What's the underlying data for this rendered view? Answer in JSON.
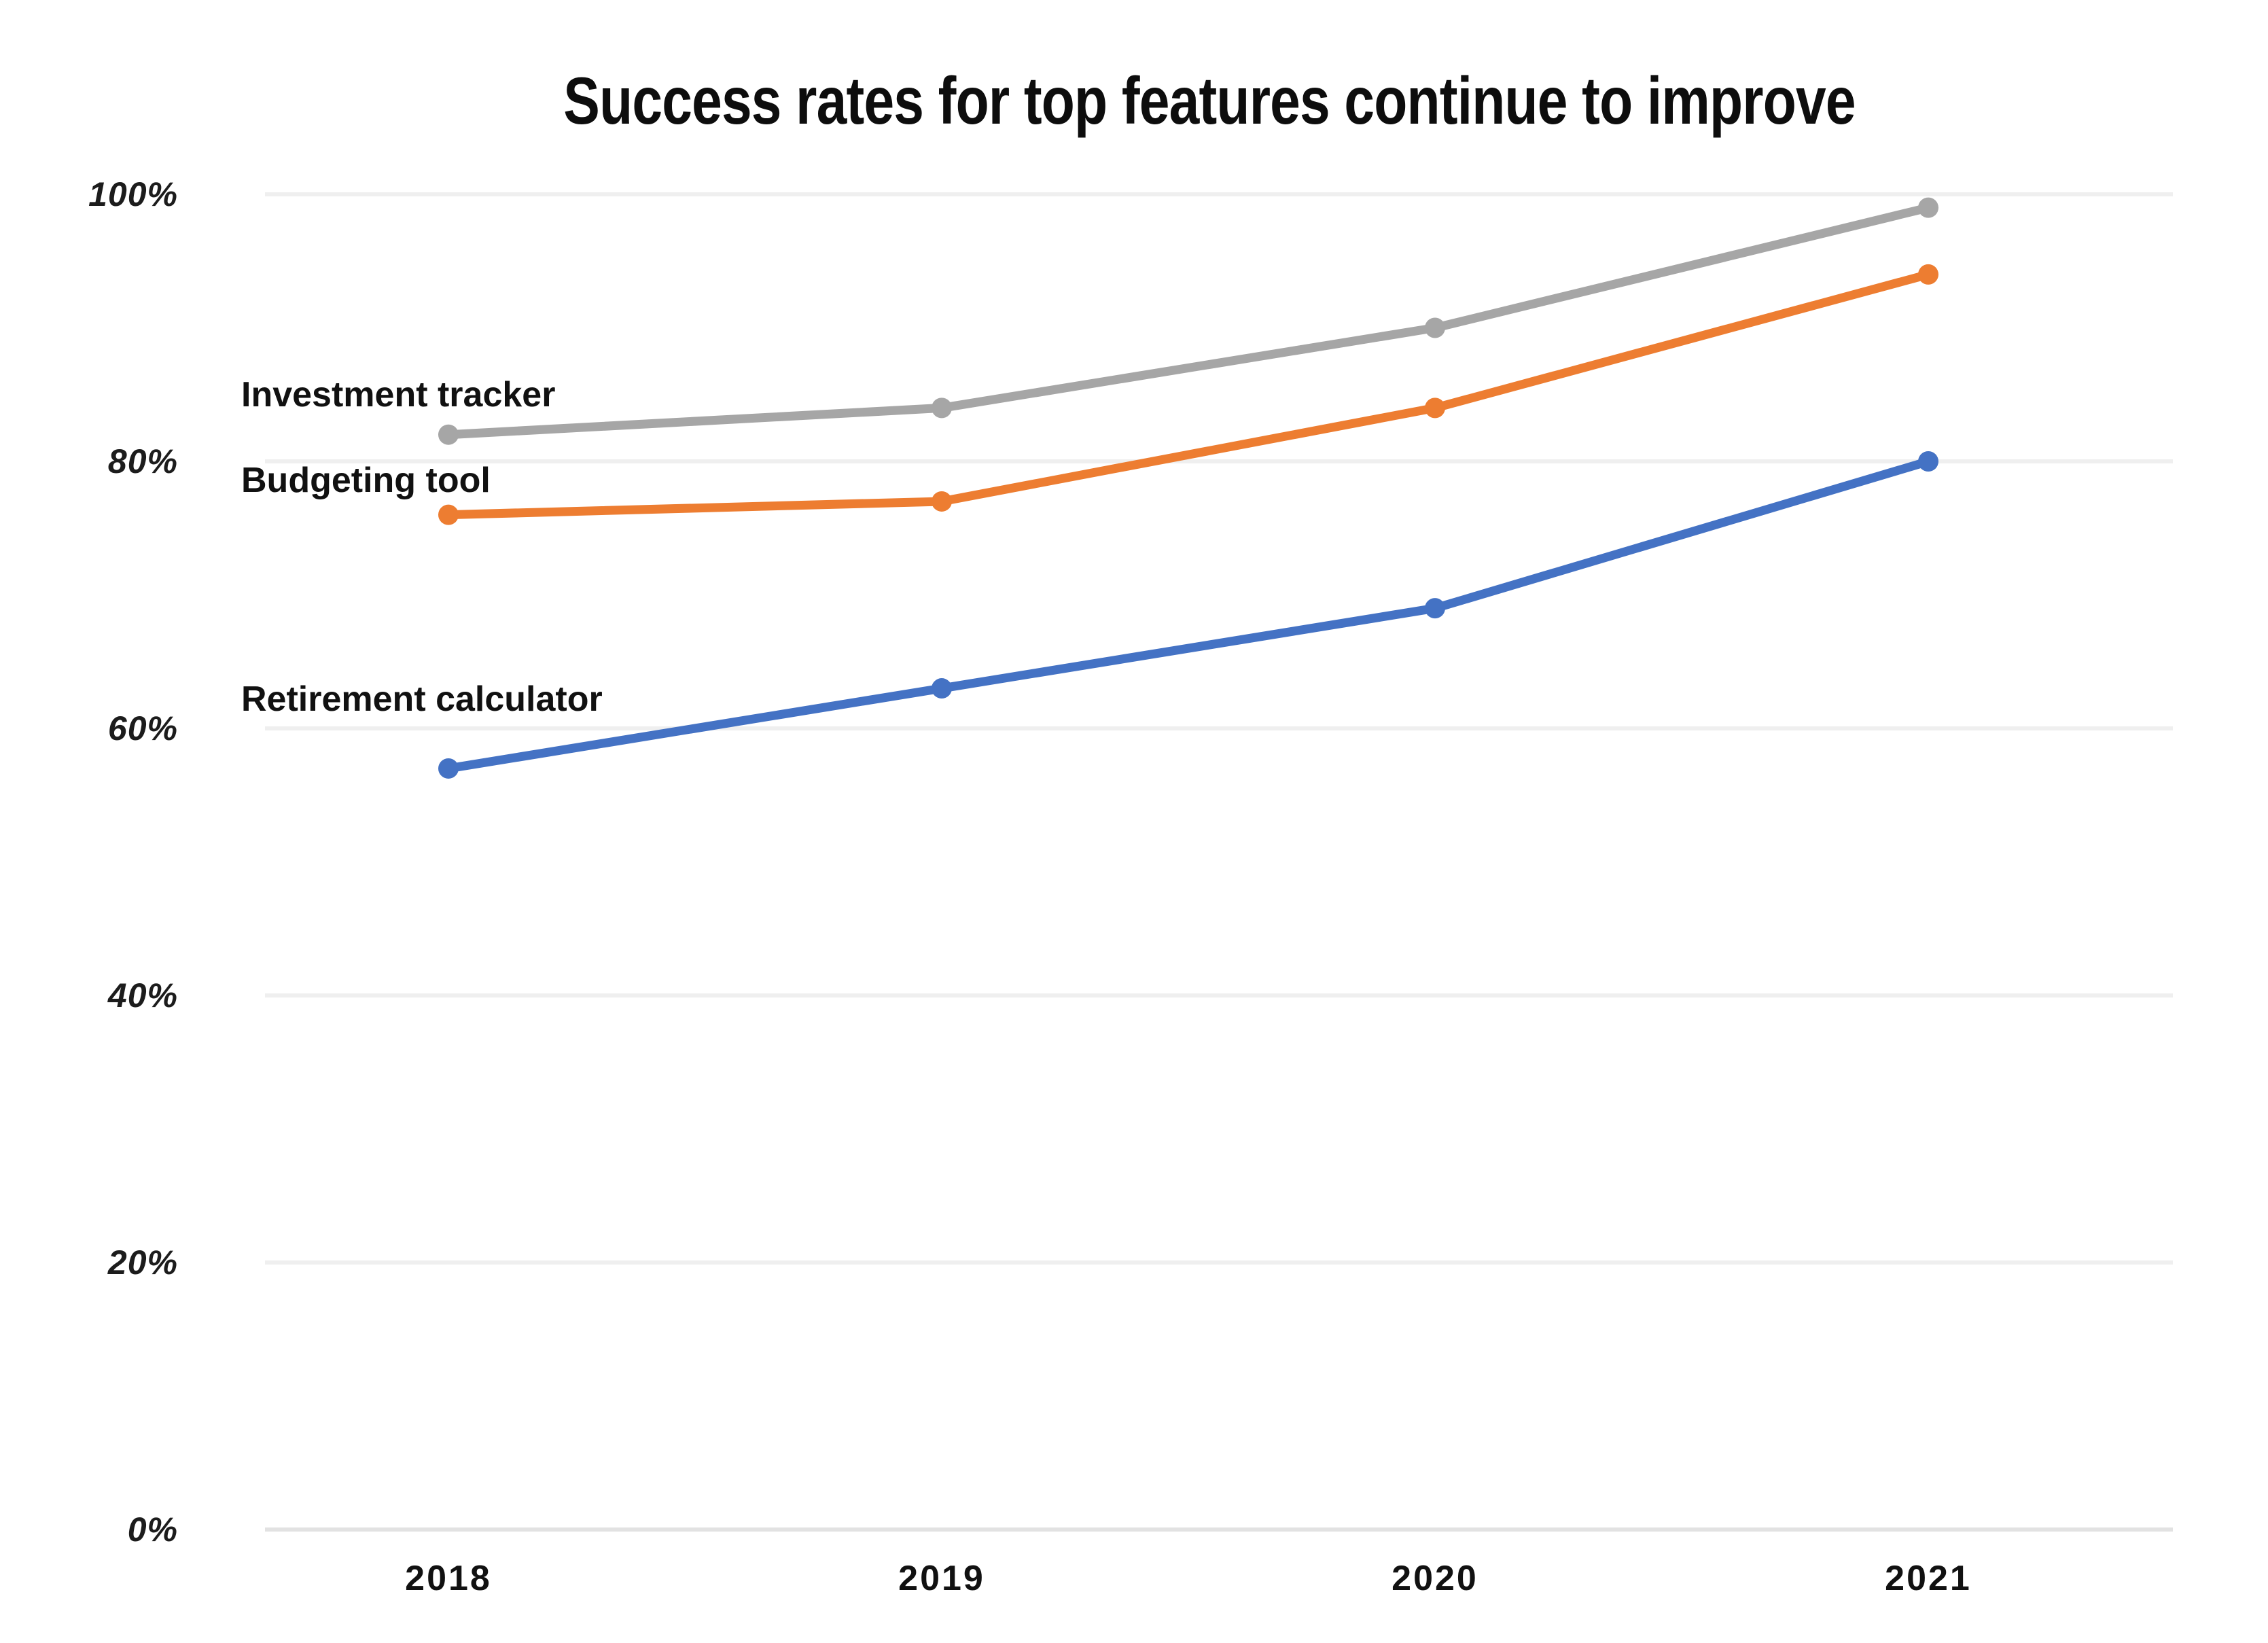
{
  "chart_data": {
    "type": "line",
    "title": "Success rates for top features continue to improve",
    "categories": [
      "2018",
      "2019",
      "2020",
      "2021"
    ],
    "series": [
      {
        "name": "Investment tracker",
        "color": "#a6a6a6",
        "values": [
          82,
          84,
          90,
          99
        ]
      },
      {
        "name": "Budgeting tool",
        "color": "#ed7d31",
        "values": [
          76,
          77,
          84,
          94
        ]
      },
      {
        "name": "Retirement calculator",
        "color": "#4472c4",
        "values": [
          57,
          63,
          69,
          80
        ]
      }
    ],
    "xlabel": "",
    "ylabel": "",
    "ylim": [
      0,
      100
    ],
    "y_tick_step": 20,
    "y_tick_labels": [
      "0%",
      "20%",
      "40%",
      "60%",
      "80%",
      "100%"
    ],
    "grid": "horizontal",
    "legend": "inline-series-labels",
    "background_color": "#ffffff"
  }
}
